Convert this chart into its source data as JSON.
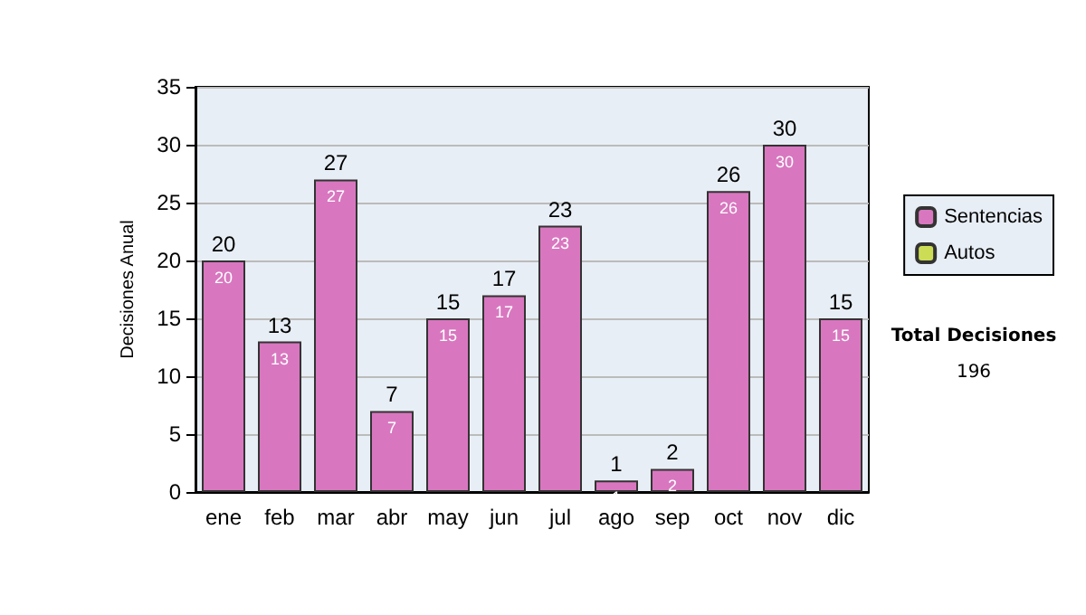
{
  "chart_data": {
    "type": "bar",
    "ylabel": "Decisiones Anual",
    "categories": [
      "ene",
      "feb",
      "mar",
      "abr",
      "may",
      "jun",
      "jul",
      "ago",
      "sep",
      "oct",
      "nov",
      "dic"
    ],
    "series": [
      {
        "name": "Sentencias",
        "color": "#d877bf",
        "values": [
          20,
          13,
          27,
          7,
          15,
          17,
          23,
          1,
          2,
          26,
          30,
          15
        ]
      },
      {
        "name": "Autos",
        "color": "#ccdd55",
        "values": [
          null,
          null,
          null,
          null,
          null,
          null,
          null,
          null,
          null,
          null,
          null,
          null
        ]
      }
    ],
    "stacked": true,
    "data_labels": true,
    "totals": [
      "20",
      "13",
      "27",
      "7",
      "15",
      "17",
      "23",
      "1",
      "2",
      "26",
      "30",
      "15"
    ],
    "ylim": [
      0,
      35
    ],
    "yticks": [
      0,
      5,
      10,
      15,
      20,
      25,
      30,
      35
    ],
    "grid": "y",
    "legend": "right",
    "annotations": [
      "Total Decisiones",
      "196"
    ]
  }
}
